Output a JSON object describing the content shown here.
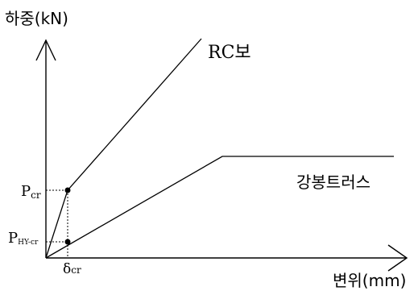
{
  "y_axis_label": "하중(kN)",
  "x_axis_label": "변위(mm)",
  "curves": {
    "rc_beam": {
      "label": "RC보"
    },
    "steel_truss": {
      "label": "강봉트러스"
    }
  },
  "markers": {
    "p_cr": {
      "main": "P",
      "sub": "cr"
    },
    "p_hy_cr": {
      "main": "P",
      "sub": "HY-cr"
    },
    "delta_cr": {
      "main": "δ",
      "sub": "cr"
    }
  },
  "colors": {
    "line": "#000000",
    "background": "#ffffff"
  }
}
